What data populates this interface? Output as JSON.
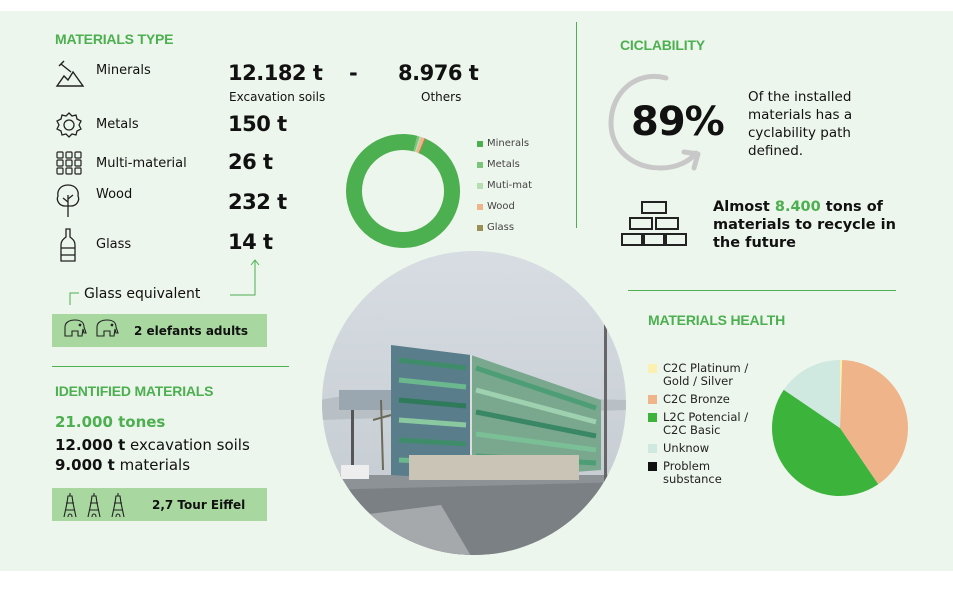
{
  "materials_type": {
    "title": "MATERIALS TYPE",
    "rows": [
      {
        "label": "Minerals",
        "value": "12.182 t",
        "dash": "-",
        "value2": "8.976 t",
        "sub1": "Excavation soils",
        "sub2": "Others",
        "icon": "minerals-icon"
      },
      {
        "label": "Metals",
        "value": "150 t",
        "icon": "gear-icon"
      },
      {
        "label": "Multi-material",
        "value": "26 t",
        "icon": "grid-icon"
      },
      {
        "label": "Wood",
        "value": "232 t",
        "icon": "tree-icon"
      },
      {
        "label": "Glass",
        "value": "14 t",
        "icon": "bottle-icon"
      }
    ],
    "glass_equivalent": "Glass equivalent",
    "elephants": "2 elefants adults"
  },
  "donut": {
    "legend": [
      "Minerals",
      "Metals",
      "Muti-mat",
      "Wood",
      "Glass"
    ],
    "colors": [
      "#4caf50",
      "#7cc47a",
      "#b5dfb0",
      "#f0b48a",
      "#9a8f55"
    ],
    "values": [
      21158,
      150,
      26,
      232,
      14
    ]
  },
  "identified": {
    "title": "IDENTIFIED MATERIALS",
    "total": "21.000 tones",
    "line1_bold": "12.000 t",
    "line1_rest": " excavation soils",
    "line2_bold": "9.000 t",
    "line2_rest": " materials",
    "eiffel": "2,7 Tour Eiffel"
  },
  "ciclability": {
    "title": "CICLABILITY",
    "percent": "89%",
    "desc": "Of the installed materials has a cyclability path defined.",
    "future_pre": "Almost ",
    "future_num": "8.400",
    "future_post": " tons of materials to recycle in the future"
  },
  "health": {
    "title": "MATERIALS HEALTH",
    "legend": [
      {
        "label": "C2C Platinum / Gold / Silver",
        "color": "#fbf0b0"
      },
      {
        "label": "C2C Bronze",
        "color": "#f0b48a"
      },
      {
        "label": "L2C Potencial / C2C Basic",
        "color": "#3cb43c"
      },
      {
        "label": "Unknow",
        "color": "#cfe8e0"
      },
      {
        "label": "Problem substance",
        "color": "#111111"
      }
    ],
    "pie_values": [
      0.5,
      40,
      44,
      15.5
    ]
  }
}
